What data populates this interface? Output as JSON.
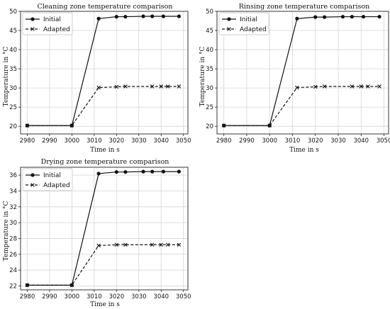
{
  "chart_data": [
    {
      "type": "line",
      "title": "Cleaning zone temperature comparison",
      "xlabel": "Time in s",
      "ylabel": "Temperature in °C",
      "xlim": [
        2977,
        3052
      ],
      "ylim": [
        18,
        50
      ],
      "xticks": [
        2980,
        2990,
        3000,
        3010,
        3020,
        3030,
        3040,
        3050
      ],
      "yticks": [
        20,
        25,
        30,
        35,
        40,
        45,
        50
      ],
      "grid": true,
      "legend_position": "top-left",
      "series": [
        {
          "name": "Initial",
          "style": "solid",
          "marker": "circle",
          "x": [
            2980,
            3000,
            3012,
            3020,
            3024,
            3032,
            3036,
            3041,
            3048
          ],
          "y": [
            20.2,
            20.2,
            48.1,
            48.6,
            48.6,
            48.7,
            48.7,
            48.7,
            48.7
          ]
        },
        {
          "name": "Adapted",
          "style": "dashed",
          "marker": "x",
          "x": [
            2980,
            3000,
            3012,
            3020,
            3024,
            3036,
            3040,
            3043,
            3048
          ],
          "y": [
            20.2,
            20.2,
            30.1,
            30.3,
            30.4,
            30.4,
            30.4,
            30.4,
            30.4
          ]
        }
      ]
    },
    {
      "type": "line",
      "title": "Rinsing zone temperature comparison",
      "xlabel": "Time in s",
      "ylabel": "Temperature in °C",
      "xlim": [
        2977,
        3052
      ],
      "ylim": [
        18,
        50
      ],
      "xticks": [
        2980,
        2990,
        3000,
        3010,
        3020,
        3030,
        3040,
        3050
      ],
      "yticks": [
        20,
        25,
        30,
        35,
        40,
        45,
        50
      ],
      "grid": true,
      "legend_position": "top-left",
      "series": [
        {
          "name": "Initial",
          "style": "solid",
          "marker": "circle",
          "x": [
            2980,
            3000,
            3012,
            3020,
            3024,
            3032,
            3036,
            3041,
            3048
          ],
          "y": [
            20.2,
            20.2,
            48.1,
            48.5,
            48.5,
            48.6,
            48.6,
            48.6,
            48.6
          ]
        },
        {
          "name": "Adapted",
          "style": "dashed",
          "marker": "x",
          "x": [
            2980,
            3000,
            3012,
            3020,
            3024,
            3036,
            3040,
            3043,
            3048
          ],
          "y": [
            20.2,
            20.2,
            30.1,
            30.3,
            30.4,
            30.4,
            30.4,
            30.4,
            30.4
          ]
        }
      ]
    },
    {
      "type": "line",
      "title": "Drying zone temperature comparison",
      "xlabel": "Time in s",
      "ylabel": "Temperature in °C",
      "xlim": [
        2977,
        3052
      ],
      "ylim": [
        21.5,
        37
      ],
      "xticks": [
        2980,
        2990,
        3000,
        3010,
        3020,
        3030,
        3040,
        3050
      ],
      "yticks": [
        22,
        24,
        26,
        28,
        30,
        32,
        34,
        36
      ],
      "grid": true,
      "legend_position": "top-left",
      "series": [
        {
          "name": "Initial",
          "style": "solid",
          "marker": "circle",
          "x": [
            2980,
            3000,
            3012,
            3020,
            3024,
            3032,
            3036,
            3041,
            3048
          ],
          "y": [
            22.1,
            22.1,
            36.2,
            36.4,
            36.4,
            36.45,
            36.45,
            36.45,
            36.45
          ]
        },
        {
          "name": "Adapted",
          "style": "dashed",
          "marker": "x",
          "x": [
            2980,
            3000,
            3012,
            3020,
            3024,
            3036,
            3040,
            3043,
            3048
          ],
          "y": [
            22.1,
            22.1,
            27.1,
            27.2,
            27.2,
            27.2,
            27.2,
            27.2,
            27.2
          ]
        }
      ]
    }
  ]
}
